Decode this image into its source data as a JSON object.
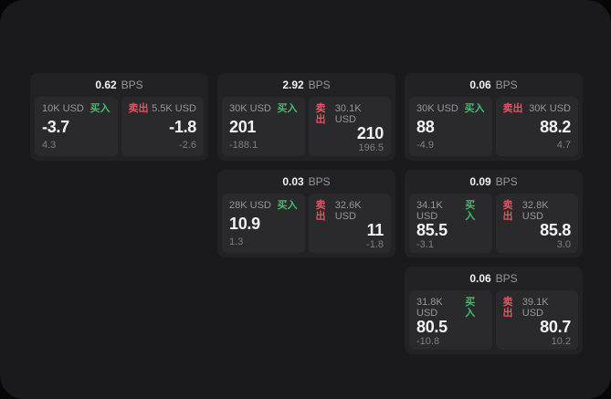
{
  "labels": {
    "bps_unit": "BPS",
    "buy": "买入",
    "sell": "卖出"
  },
  "colors": {
    "buy_green": "#3fbf6f",
    "sell_red": "#e05662",
    "panel_bg": "#1a1a1c",
    "card_bg": "#222224",
    "tile_bg": "#2a2a2c"
  },
  "cards": [
    {
      "bps": "0.62",
      "buy": {
        "notional": "10K USD",
        "price": "-3.7",
        "sub": "4.3"
      },
      "sell": {
        "notional": "5.5K USD",
        "price": "-1.8",
        "sub": "-2.6"
      }
    },
    {
      "bps": "2.92",
      "buy": {
        "notional": "30K USD",
        "price": "201",
        "sub": "-188.1"
      },
      "sell": {
        "notional": "30.1K USD",
        "price": "210",
        "sub": "196.5"
      }
    },
    {
      "bps": "0.06",
      "buy": {
        "notional": "30K USD",
        "price": "88",
        "sub": "-4.9"
      },
      "sell": {
        "notional": "30K USD",
        "price": "88.2",
        "sub": "4.7"
      }
    },
    {
      "bps": "0.03",
      "buy": {
        "notional": "28K USD",
        "price": "10.9",
        "sub": "1.3"
      },
      "sell": {
        "notional": "32.6K USD",
        "price": "11",
        "sub": "-1.8"
      }
    },
    {
      "bps": "0.09",
      "buy": {
        "notional": "34.1K USD",
        "price": "85.5",
        "sub": "-3.1"
      },
      "sell": {
        "notional": "32.8K USD",
        "price": "85.8",
        "sub": "3.0"
      }
    },
    {
      "bps": "0.06",
      "buy": {
        "notional": "31.8K USD",
        "price": "80.5",
        "sub": "-10.8"
      },
      "sell": {
        "notional": "39.1K USD",
        "price": "80.7",
        "sub": "10.2"
      }
    }
  ]
}
